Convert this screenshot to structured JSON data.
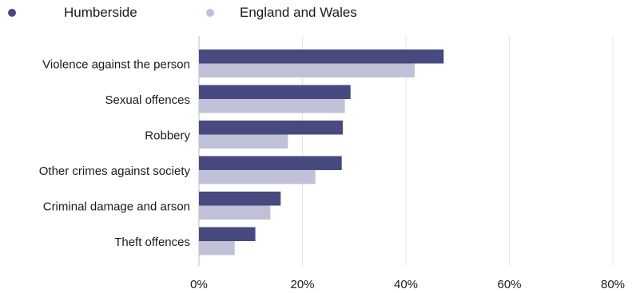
{
  "colors": {
    "humberside": "#47497f",
    "england_wales": "#c0c0d6",
    "grid": "#e6e6e6",
    "axis": "#bdbdbd"
  },
  "legend": [
    {
      "label": "Humberside",
      "color": "#47497f"
    },
    {
      "label": "England and Wales",
      "color": "#c0c0d6"
    }
  ],
  "chart_data": {
    "type": "bar",
    "orientation": "horizontal",
    "categories": [
      "Violence against the person",
      "Sexual offences",
      "Robbery",
      "Other crimes against society",
      "Criminal damage and arson",
      "Theft offences"
    ],
    "series": [
      {
        "name": "Humberside",
        "values": [
          47.3,
          29.3,
          27.8,
          27.6,
          15.8,
          10.9
        ]
      },
      {
        "name": "England and Wales",
        "values": [
          41.7,
          28.2,
          17.2,
          22.5,
          13.8,
          6.9
        ]
      }
    ],
    "xlim": [
      0,
      80
    ],
    "xticks": [
      "0%",
      "20%",
      "40%",
      "60%",
      "80%"
    ],
    "grid": true,
    "legend_position": "top-left"
  }
}
